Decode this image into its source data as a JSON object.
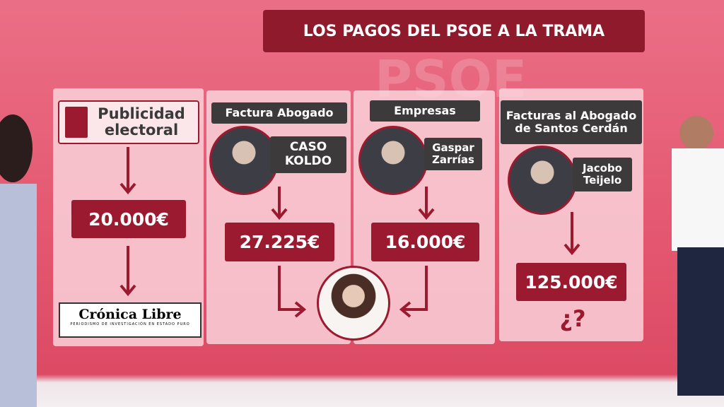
{
  "background_text": "PSOE",
  "header": {
    "title": "LOS PAGOS DEL PSOE A LA TRAMA"
  },
  "columns": [
    {
      "label": "Publicidad electoral",
      "amount": "20.000€",
      "logo": "Crónica Libre",
      "logo_tagline": "PERIODISMO DE INVESTIGACIÓN EN ESTADO PURO"
    },
    {
      "label": "Factura Abogado",
      "name": "CASO KOLDO",
      "amount": "27.225€"
    },
    {
      "label": "Empresas",
      "name": "Gaspar Zarrías",
      "amount": "16.000€"
    },
    {
      "label": "Facturas al Abogado de Santos Cerdán",
      "name": "Jacobo Teijelo",
      "amount": "125.000€",
      "note": "¿?"
    }
  ]
}
